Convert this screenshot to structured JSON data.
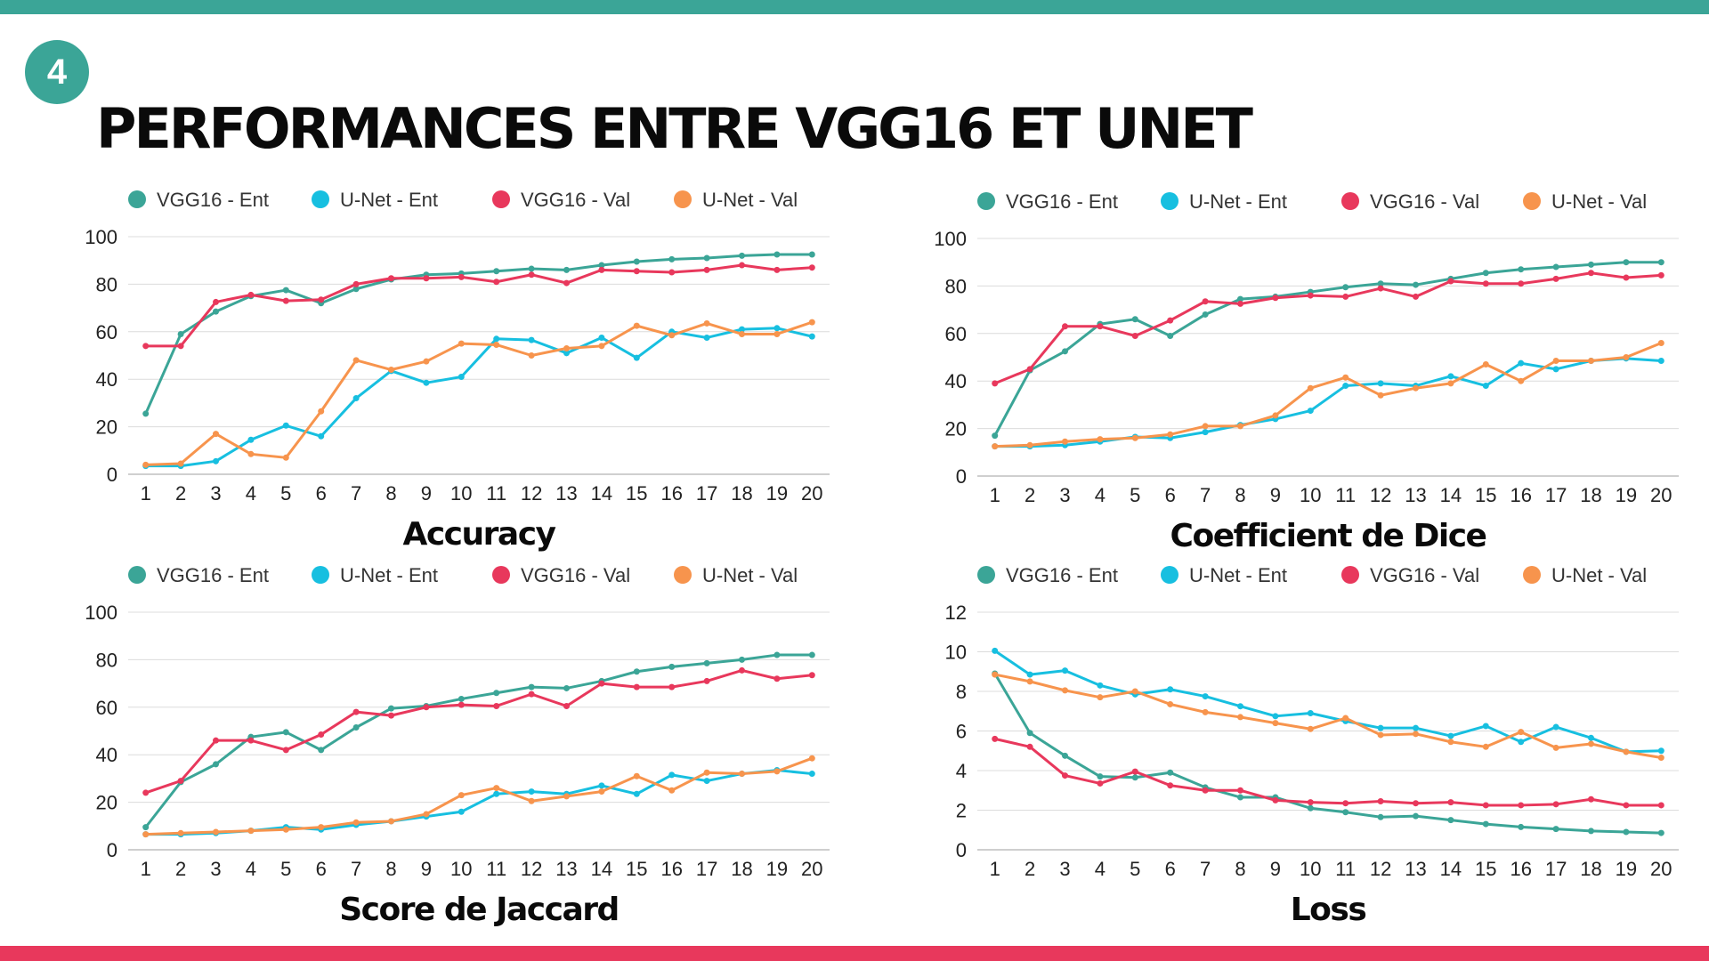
{
  "slide": {
    "number": "4",
    "title": "PERFORMANCES ENTRE VGG16 ET UNET"
  },
  "series_colors": {
    "VGG16 - Ent": "#3ba597",
    "U-Net - Ent": "#17bfe0",
    "VGG16 - Val": "#e8385c",
    "U-Net - Val": "#f7944d"
  },
  "chart_data": [
    {
      "type": "line",
      "title": "Accuracy",
      "x": [
        1,
        2,
        3,
        4,
        5,
        6,
        7,
        8,
        9,
        10,
        11,
        12,
        13,
        14,
        15,
        16,
        17,
        18,
        19,
        20
      ],
      "ylim": [
        0,
        100
      ],
      "yticks": [
        0,
        20,
        40,
        60,
        80,
        100
      ],
      "series": [
        {
          "name": "VGG16 - Ent",
          "values": [
            25.5,
            59,
            68.5,
            75,
            77.5,
            72,
            78,
            82,
            84,
            84.5,
            85.5,
            86.5,
            86,
            88,
            89.5,
            90.5,
            91,
            92,
            92.5,
            92.5
          ]
        },
        {
          "name": "U-Net - Ent",
          "values": [
            3.5,
            3.5,
            5.5,
            14.5,
            20.5,
            16,
            32,
            43.5,
            38.5,
            41,
            57,
            56.5,
            51,
            57.5,
            49,
            60,
            57.5,
            61,
            61.5,
            58
          ]
        },
        {
          "name": "VGG16 - Val",
          "values": [
            54,
            54,
            72.5,
            75.5,
            73,
            73.5,
            80,
            82.5,
            82.5,
            83,
            81,
            84,
            80.5,
            86,
            85.5,
            85,
            86,
            88,
            86,
            87
          ]
        },
        {
          "name": "U-Net - Val",
          "values": [
            4,
            4.5,
            17,
            8.5,
            7,
            26.5,
            48,
            44,
            47.5,
            55,
            54.5,
            50,
            53,
            54,
            62.5,
            58.5,
            63.5,
            59,
            59,
            64
          ]
        }
      ]
    },
    {
      "type": "line",
      "title": "Coefficient de Dice",
      "x": [
        1,
        2,
        3,
        4,
        5,
        6,
        7,
        8,
        9,
        10,
        11,
        12,
        13,
        14,
        15,
        16,
        17,
        18,
        19,
        20
      ],
      "ylim": [
        0,
        100
      ],
      "yticks": [
        0,
        20,
        40,
        60,
        80,
        100
      ],
      "series": [
        {
          "name": "VGG16 - Ent",
          "values": [
            17,
            44.5,
            52.5,
            64,
            66,
            59,
            68,
            74.5,
            75.5,
            77.5,
            79.5,
            81,
            80.5,
            83,
            85.5,
            87,
            88,
            89,
            90,
            90
          ]
        },
        {
          "name": "U-Net - Ent",
          "values": [
            12.5,
            12.5,
            13,
            14.5,
            16.5,
            16,
            18.5,
            21.5,
            24,
            27.5,
            38,
            39,
            38,
            42,
            38,
            47.5,
            45,
            48.5,
            49.5,
            48.5
          ]
        },
        {
          "name": "VGG16 - Val",
          "values": [
            39,
            45,
            63,
            63,
            59,
            65.5,
            73.5,
            72.5,
            75,
            76,
            75.5,
            79,
            75.5,
            82,
            81,
            81,
            83,
            85.5,
            83.5,
            84.5
          ]
        },
        {
          "name": "U-Net - Val",
          "values": [
            12.5,
            13,
            14.5,
            15.5,
            16,
            17.5,
            21,
            21,
            25.5,
            37,
            41.5,
            34,
            37,
            39,
            47,
            40,
            48.5,
            48.5,
            50,
            56
          ]
        }
      ]
    },
    {
      "type": "line",
      "title": "Score de Jaccard",
      "x": [
        1,
        2,
        3,
        4,
        5,
        6,
        7,
        8,
        9,
        10,
        11,
        12,
        13,
        14,
        15,
        16,
        17,
        18,
        19,
        20
      ],
      "ylim": [
        0,
        100
      ],
      "yticks": [
        0,
        20,
        40,
        60,
        80,
        100
      ],
      "series": [
        {
          "name": "VGG16 - Ent",
          "values": [
            9.5,
            28.5,
            36,
            47.5,
            49.5,
            42,
            51.5,
            59.5,
            60.5,
            63.5,
            66,
            68.5,
            68,
            71,
            75,
            77,
            78.5,
            80,
            82,
            82
          ]
        },
        {
          "name": "U-Net - Ent",
          "values": [
            6.5,
            6.5,
            7,
            8,
            9.5,
            8.5,
            10.5,
            12,
            14,
            16,
            23.5,
            24.5,
            23.5,
            27,
            23.5,
            31.5,
            29,
            32,
            33.5,
            32
          ]
        },
        {
          "name": "VGG16 - Val",
          "values": [
            24,
            29,
            46,
            46,
            42,
            48.5,
            58,
            56.5,
            60,
            61,
            60.5,
            65.5,
            60.5,
            70,
            68.5,
            68.5,
            71,
            75.5,
            72,
            73.5
          ]
        },
        {
          "name": "U-Net - Val",
          "values": [
            6.5,
            7,
            7.5,
            8,
            8.5,
            9.5,
            11.5,
            12,
            15,
            23,
            26,
            20.5,
            22.5,
            24.5,
            31,
            25,
            32.5,
            32,
            33,
            38.5
          ]
        }
      ]
    },
    {
      "type": "line",
      "title": "Loss",
      "x": [
        1,
        2,
        3,
        4,
        5,
        6,
        7,
        8,
        9,
        10,
        11,
        12,
        13,
        14,
        15,
        16,
        17,
        18,
        19,
        20
      ],
      "ylim": [
        0,
        12
      ],
      "yticks": [
        0,
        2,
        4,
        6,
        8,
        10,
        12
      ],
      "series": [
        {
          "name": "VGG16 - Ent",
          "values": [
            8.9,
            5.9,
            4.75,
            3.7,
            3.65,
            3.9,
            3.15,
            2.65,
            2.65,
            2.1,
            1.9,
            1.65,
            1.7,
            1.5,
            1.3,
            1.15,
            1.05,
            0.95,
            0.9,
            0.85
          ]
        },
        {
          "name": "U-Net - Ent",
          "values": [
            10.05,
            8.85,
            9.05,
            8.3,
            7.85,
            8.1,
            7.75,
            7.25,
            6.75,
            6.9,
            6.5,
            6.15,
            6.15,
            5.75,
            6.25,
            5.45,
            6.2,
            5.65,
            4.95,
            5
          ]
        },
        {
          "name": "VGG16 - Val",
          "values": [
            5.6,
            5.2,
            3.75,
            3.35,
            3.95,
            3.25,
            3,
            3,
            2.5,
            2.4,
            2.35,
            2.45,
            2.35,
            2.4,
            2.25,
            2.25,
            2.3,
            2.55,
            2.25,
            2.25
          ]
        },
        {
          "name": "U-Net - Val",
          "values": [
            8.85,
            8.5,
            8.05,
            7.7,
            8,
            7.35,
            6.95,
            6.7,
            6.4,
            6.1,
            6.65,
            5.8,
            5.85,
            5.45,
            5.2,
            5.95,
            5.15,
            5.35,
            4.95,
            4.65
          ]
        }
      ]
    }
  ]
}
